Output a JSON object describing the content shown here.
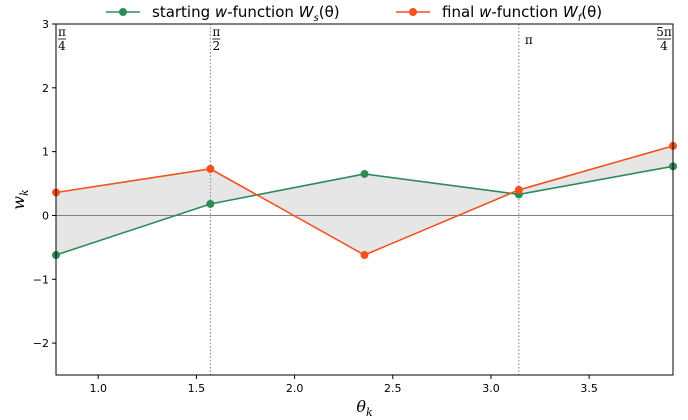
{
  "chart_data": {
    "type": "line",
    "xlabel": "θ_k",
    "ylabel": "w_k",
    "xlim": [
      0.785,
      3.927
    ],
    "ylim": [
      -2.5,
      3
    ],
    "x_ticks": [
      1.0,
      1.5,
      2.0,
      2.5,
      3.0,
      3.5
    ],
    "x_tick_labels": [
      "1.0",
      "1.5",
      "2.0",
      "2.5",
      "3.0",
      "3.5"
    ],
    "y_ticks": [
      -2,
      -1,
      0,
      1,
      2,
      3
    ],
    "y_tick_labels": [
      "−2",
      "−1",
      "0",
      "1",
      "2",
      "3"
    ],
    "legend_position": "top-center",
    "fill_between": true,
    "zero_line": true,
    "x": [
      0.785,
      1.571,
      2.356,
      3.142,
      3.927
    ],
    "series": [
      {
        "name": "starting w-function W_s(θ)",
        "color": "#2e8b57",
        "values": [
          -0.62,
          0.18,
          0.65,
          0.33,
          0.77
        ]
      },
      {
        "name": "final w-function W_f(θ)",
        "color": "#f4511e",
        "values": [
          0.36,
          0.73,
          -0.62,
          0.4,
          1.09
        ]
      }
    ],
    "vertical_lines": [
      {
        "x": 1.571,
        "label": "π/2"
      },
      {
        "x": 3.142,
        "label": "π"
      }
    ],
    "annotations": [
      {
        "x": 0.785,
        "label": "π/4"
      },
      {
        "x": 1.571,
        "label": "π/2"
      },
      {
        "x": 3.142,
        "label": "π"
      },
      {
        "x": 3.927,
        "label": "5π/4"
      }
    ]
  }
}
